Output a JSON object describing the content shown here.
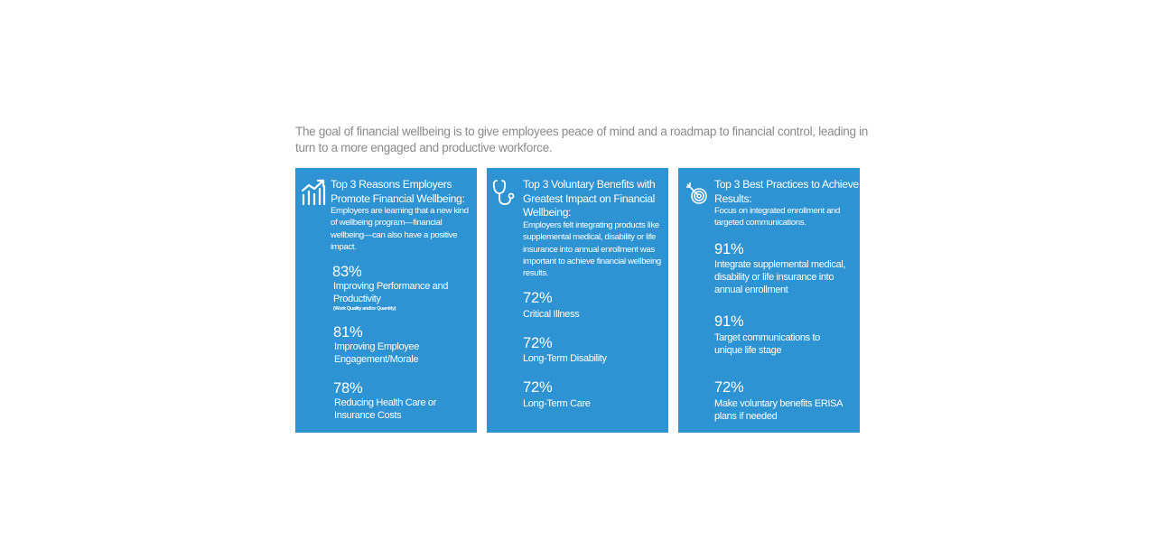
{
  "intro": "The goal of financial wellbeing is to give employees peace of mind and a roadmap to financial control, leading in turn to a more engaged and productive workforce.",
  "cards": [
    {
      "icon": "growth-chart-icon",
      "title": "Top 3 Reasons Employers Promote Financial Wellbeing:",
      "description": "Employers are learning that a new kind of wellbeing program—financial wellbeing—can also have a positive impact.",
      "stats": [
        {
          "value": "83%",
          "label": "Improving Performance and Productivity",
          "note": "(Work Quality and/or Quantity)"
        },
        {
          "value": "81%",
          "label": "Improving Employee Engagement/Morale"
        },
        {
          "value": "78%",
          "label": "Reducing Health Care or Insurance Costs"
        }
      ]
    },
    {
      "icon": "stethoscope-icon",
      "title": "Top 3 Voluntary Benefits with Greatest Impact on Financial Wellbeing:",
      "description": "Employers felt integrating products like supplemental medical, disability or life insurance into annual enrollment was important to achieve financial wellbeing results.",
      "stats": [
        {
          "value": "72%",
          "label": "Critical Illness"
        },
        {
          "value": "72%",
          "label": "Long-Term Disability"
        },
        {
          "value": "72%",
          "label": "Long-Term Care"
        }
      ]
    },
    {
      "icon": "target-icon",
      "title": "Top 3 Best Practices to Achieve Results:",
      "description": "Focus on integrated enrollment and targeted communications.",
      "stats": [
        {
          "value": "91%",
          "label": "Integrate supplemental medical, disability or life insurance into annual enrollment"
        },
        {
          "value": "91%",
          "label": "Target communications to unique life stage"
        },
        {
          "value": "72%",
          "label": "Make voluntary benefits ERISA plans if needed"
        }
      ]
    }
  ]
}
